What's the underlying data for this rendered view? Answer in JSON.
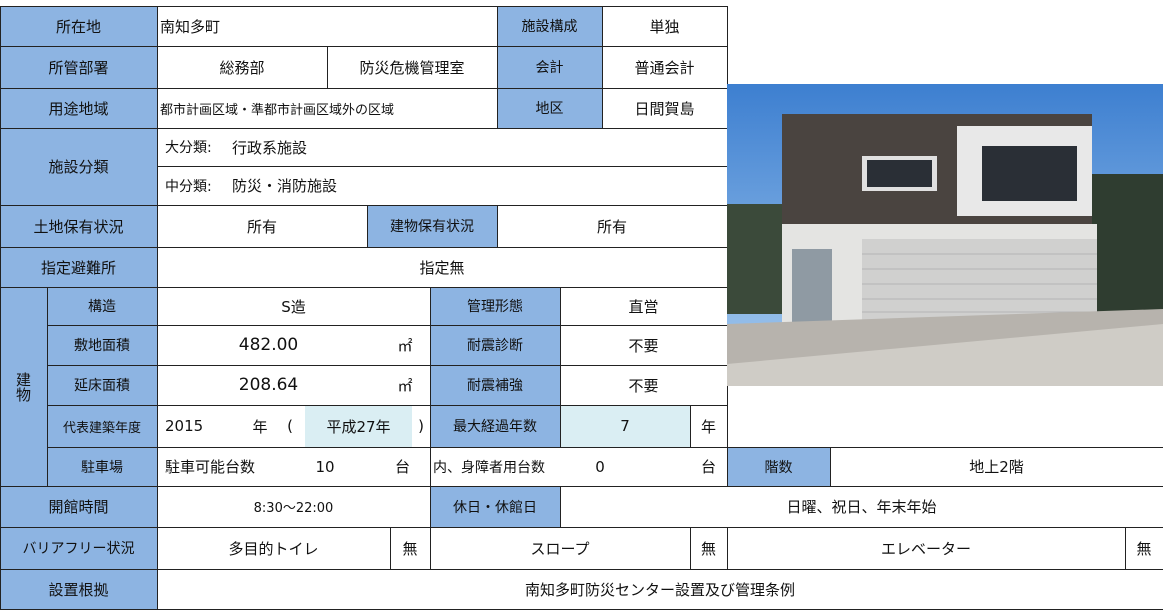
{
  "location_label": "所在地",
  "location": "南知多町",
  "composition_label": "施設構成",
  "composition": "単独",
  "dept_label": "所管部署",
  "dept": "総務部",
  "section": "防災危機管理室",
  "account_label": "会計",
  "account": "普通会計",
  "zoning_label": "用途地域",
  "zoning": "都市計画区域・準都市計画区域外の区域",
  "district_label": "地区",
  "district": "日間賀島",
  "classification_label": "施設分類",
  "major_label": "大分類:",
  "major": "行政系施設",
  "minor_label": "中分類:",
  "minor": "防災・消防施設",
  "land_label": "土地保有状況",
  "land": "所有",
  "bldg_own_label": "建物保有状況",
  "bldg_own": "所有",
  "shelter_label": "指定避難所",
  "shelter": "指定無",
  "building_label": "建物",
  "structure_label": "構造",
  "structure": "S造",
  "mgmt_label": "管理形態",
  "mgmt": "直営",
  "site_area_label": "敷地面積",
  "site_area": "482.00",
  "unit": "㎡",
  "seismic_diag_label": "耐震診断",
  "seismic_diag": "不要",
  "floor_area_label": "延床面積",
  "floor_area": "208.64",
  "seismic_ret_label": "耐震補強",
  "seismic_ret": "不要",
  "year_label": "代表建築年度",
  "year": "2015",
  "year_unit": "年",
  "paren_open": "(",
  "era": "平成27年",
  "paren_close": ")",
  "max_age_label": "最大経過年数",
  "max_age": "7",
  "age_unit": "年",
  "parking_label": "駐車場",
  "parking_count_label": "駐車可能台数",
  "parking_count": "10",
  "count_unit": "台",
  "disabled_label": "内、身障者用台数",
  "disabled_count": "0",
  "floors_label": "階数",
  "floors": "地上2階",
  "hours_label": "開館時間",
  "hours": "8:30〜22:00",
  "holiday_label": "休日・休館日",
  "holidays": "日曜、祝日、年末年始",
  "barrier_label": "バリアフリー状況",
  "toilet_label": "多目的トイレ",
  "toilet": "無",
  "slope_label": "スロープ",
  "slope": "無",
  "elevator_label": "エレベーター",
  "elevator": "無",
  "basis_label": "設置根拠",
  "basis": "南知多町防災センター設置及び管理条例"
}
